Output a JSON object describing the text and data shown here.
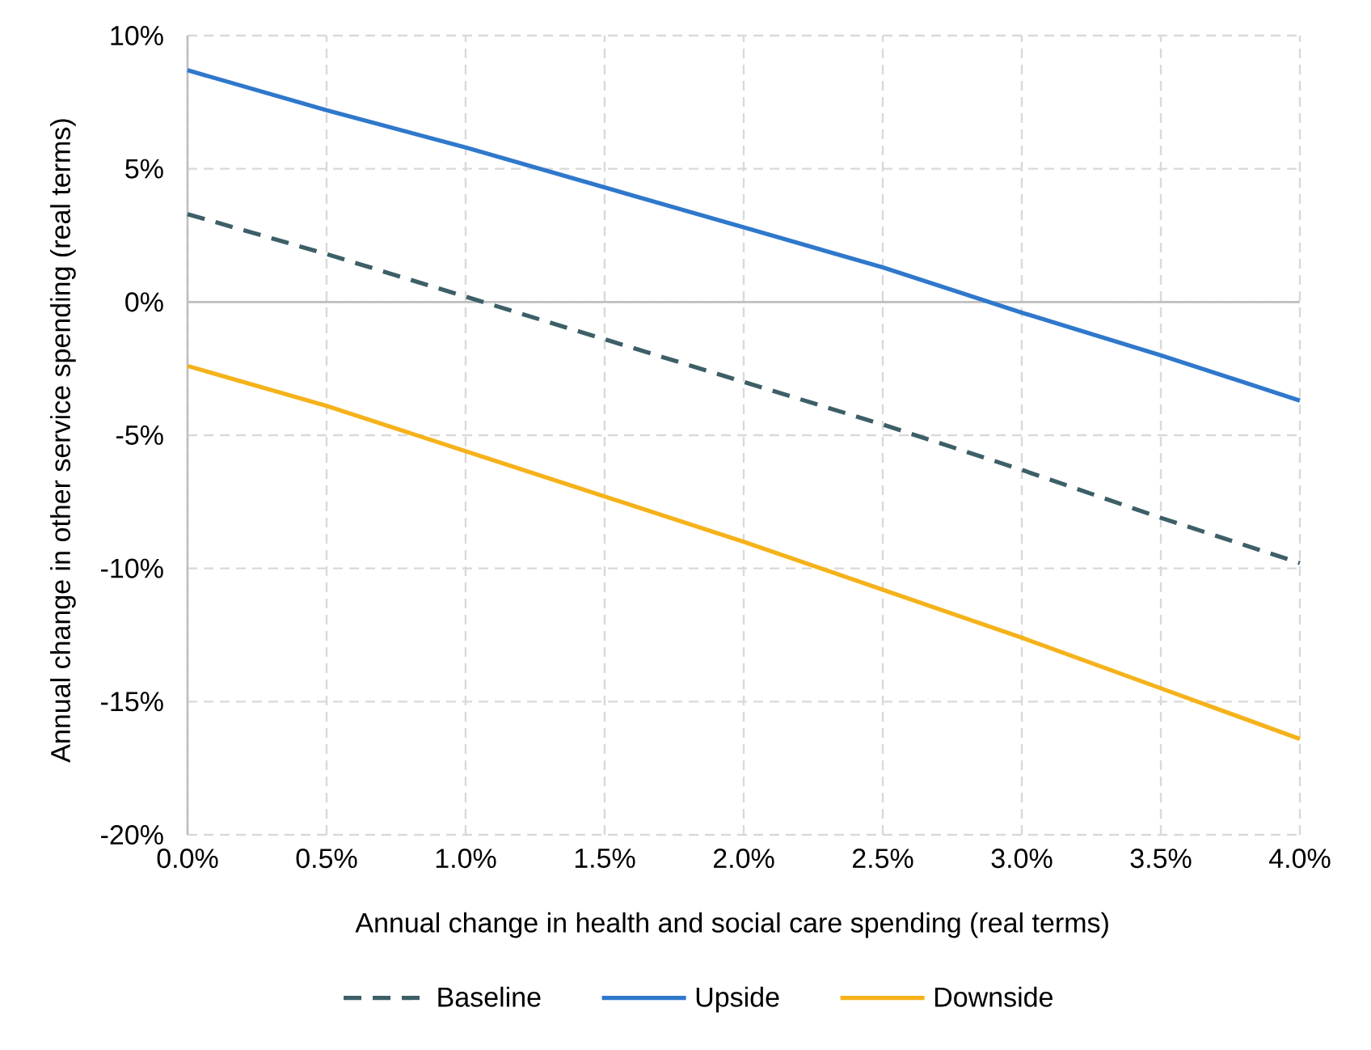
{
  "chart_data": {
    "type": "line",
    "xlabel": "Annual change in health and social care spending (real terms)",
    "ylabel": "Annual change in other service spending (real terms)",
    "x": [
      0,
      0.5,
      1.0,
      1.5,
      2.0,
      2.5,
      3.0,
      3.5,
      4.0
    ],
    "series": [
      {
        "name": "Baseline",
        "color": "#3d5f67",
        "line_style": "dashed",
        "values": [
          3.3,
          1.8,
          0.2,
          -1.4,
          -3.0,
          -4.6,
          -6.3,
          -8.1,
          -9.8
        ]
      },
      {
        "name": "Upside",
        "color": "#2f78cc",
        "values": [
          8.7,
          7.2,
          5.8,
          4.3,
          2.8,
          1.3,
          -0.4,
          -2.0,
          -3.7
        ]
      },
      {
        "name": "Downside",
        "color": "#f5b21a",
        "values": [
          -2.4,
          -3.9,
          -5.6,
          -7.3,
          -9.0,
          -10.8,
          -12.6,
          -14.5,
          -16.4
        ]
      }
    ],
    "xlim": [
      0,
      4
    ],
    "ylim": [
      -20,
      10
    ],
    "xticks": [
      {
        "value": 0,
        "label": "0.0%"
      },
      {
        "value": 0.5,
        "label": "0.5%"
      },
      {
        "value": 1,
        "label": "1.0%"
      },
      {
        "value": 1.5,
        "label": "1.5%"
      },
      {
        "value": 2,
        "label": "2.0%"
      },
      {
        "value": 2.5,
        "label": "2.5%"
      },
      {
        "value": 3,
        "label": "3.0%"
      },
      {
        "value": 3.5,
        "label": "3.5%"
      },
      {
        "value": 4,
        "label": "4.0%"
      }
    ],
    "yticks": [
      {
        "value": -20,
        "label": "-20%"
      },
      {
        "value": -15,
        "label": "-15%"
      },
      {
        "value": -10,
        "label": "-10%"
      },
      {
        "value": -5,
        "label": "-5%"
      },
      {
        "value": 0,
        "label": "0%"
      },
      {
        "value": 5,
        "label": "5%"
      },
      {
        "value": 10,
        "label": "10%"
      }
    ],
    "ref_lines": [
      {
        "axis": "y",
        "value": 0,
        "color": "#bfbfbf"
      }
    ],
    "grid": true,
    "legend": "bottom",
    "marker": "none"
  }
}
